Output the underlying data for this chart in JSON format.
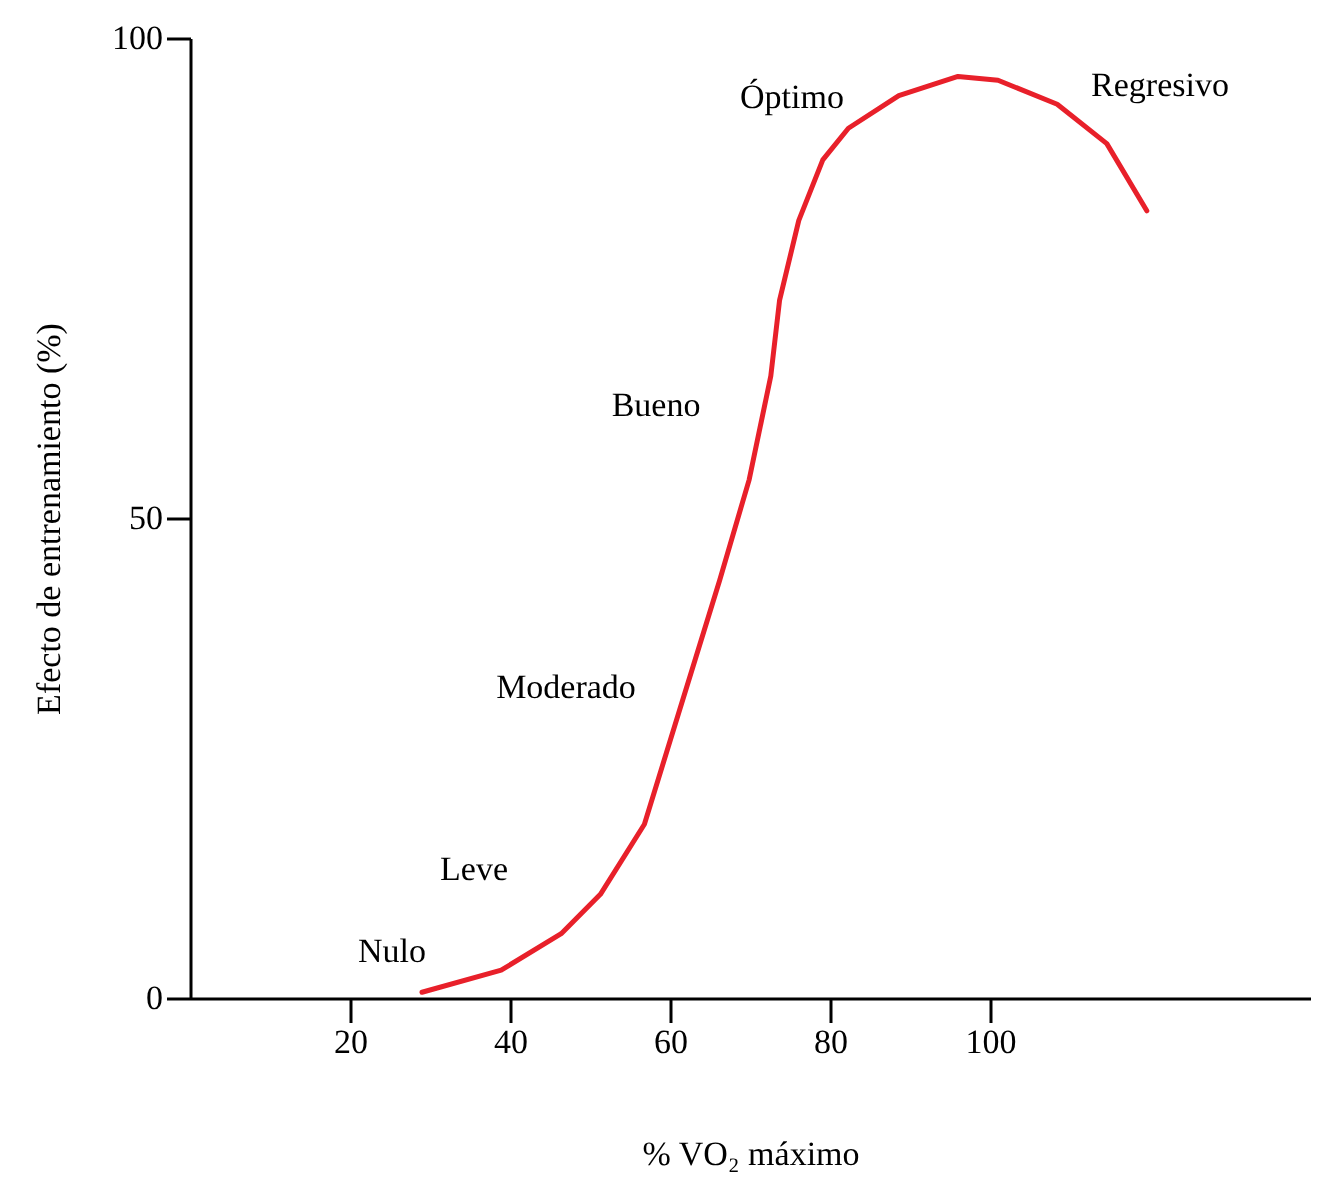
{
  "chart_data": {
    "type": "line",
    "xlabel": "% VO₂ máximo",
    "ylabel": "Efecto de entrenamiento (%)",
    "x": [
      29,
      38.9,
      46.4,
      51.3,
      56.8,
      61.2,
      66.2,
      69.9,
      72.6,
      73.7,
      76.1,
      79.1,
      82.3,
      88.6,
      96,
      101,
      108.4,
      114.6,
      119.6
    ],
    "series": [
      {
        "color": "#e8202a",
        "values": [
          0.6,
          2.9,
          6.7,
          10.8,
          18.1,
          30,
          43.5,
          54,
          64.8,
          72.7,
          81,
          87.3,
          90.6,
          94,
          96,
          95.6,
          93.1,
          89,
          82
        ]
      }
    ],
    "xlim": [
      0,
      140
    ],
    "xticks": [
      20,
      40,
      60,
      80,
      100
    ],
    "ylim": [
      0,
      100
    ],
    "yticks": [
      0,
      50,
      100
    ],
    "grid": false,
    "marker": "none",
    "line_style": "solid",
    "annotations": [
      "Nulo",
      "Leve",
      "Moderado",
      "Bueno",
      "Óptimo",
      "Regresivo"
    ]
  }
}
